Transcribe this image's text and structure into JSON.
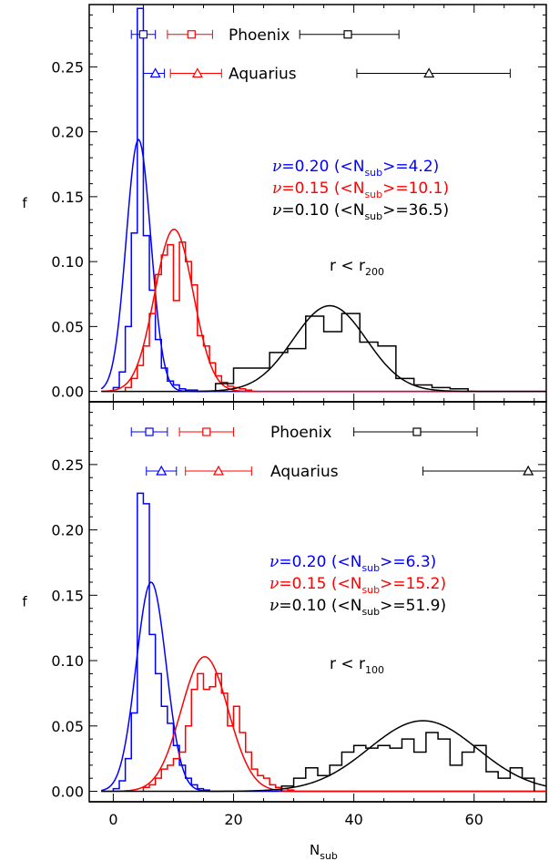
{
  "chart_data": [
    {
      "type": "line",
      "panel": "top",
      "xlim": [
        -4,
        72
      ],
      "ylim": [
        -0.008,
        0.298
      ],
      "yticks": [
        0.0,
        0.05,
        0.1,
        0.15,
        0.2,
        0.25
      ],
      "ytick_labels": [
        "0.00",
        "0.05",
        "0.10",
        "0.15",
        "0.20",
        "0.25"
      ],
      "ylabel": "f",
      "xlabel": "",
      "region_label": {
        "text": "r < r",
        "sub": "200"
      },
      "legend": [
        {
          "prefix": "=0.20 (<N",
          "sub": "sub",
          "suffix": ">=4.2)",
          "color": "#0000ff"
        },
        {
          "prefix": "=0.15 (<N",
          "sub": "sub",
          "suffix": ">=10.1)",
          "color": "#ff0000"
        },
        {
          "prefix": "=0.10 (<N",
          "sub": "sub",
          "suffix": ">=36.5)",
          "color": "#000000"
        }
      ],
      "nu_symbol": "ν",
      "references": [
        {
          "name": "Phoenix",
          "marker": "square",
          "y": 0.275,
          "points": [
            {
              "x": 5.0,
              "lo": 3.0,
              "hi": 7.0,
              "color": "#0000ff"
            },
            {
              "x": 13.0,
              "lo": 9.0,
              "hi": 16.5,
              "color": "#ff0000"
            },
            {
              "x": 39.0,
              "lo": 31.0,
              "hi": 47.5,
              "color": "#000000"
            }
          ]
        },
        {
          "name": "Aquarius",
          "marker": "triangle",
          "y": 0.245,
          "points": [
            {
              "x": 7.0,
              "lo": 5.0,
              "hi": 8.5,
              "color": "#0000ff"
            },
            {
              "x": 14.0,
              "lo": 9.5,
              "hi": 18.0,
              "color": "#ff0000"
            },
            {
              "x": 52.5,
              "lo": 40.5,
              "hi": 66.0,
              "color": "#000000"
            }
          ]
        }
      ],
      "series": [
        {
          "kind": "hist",
          "color": "#0000ff",
          "edges": [
            0,
            1,
            2,
            3,
            4,
            5,
            6,
            7,
            8,
            9,
            10,
            11,
            12,
            13,
            14,
            15,
            16
          ],
          "values": [
            0.003,
            0.015,
            0.05,
            0.122,
            0.295,
            0.12,
            0.078,
            0.04,
            0.018,
            0.008,
            0.005,
            0.002,
            0.001,
            0.001,
            0.0,
            0.0
          ]
        },
        {
          "kind": "curve",
          "color": "#0000ff",
          "mean": 4.2,
          "sigma": 2.05,
          "amp": 0.194
        },
        {
          "kind": "hist",
          "color": "#ff0000",
          "edges": [
            2,
            3,
            4,
            5,
            6,
            7,
            8,
            9,
            10,
            11,
            12,
            13,
            14,
            15,
            16,
            17,
            18,
            19,
            20,
            21,
            22,
            23,
            24
          ],
          "values": [
            0.003,
            0.01,
            0.02,
            0.035,
            0.06,
            0.09,
            0.105,
            0.113,
            0.07,
            0.115,
            0.1,
            0.082,
            0.043,
            0.035,
            0.022,
            0.012,
            0.007,
            0.004,
            0.003,
            0.002,
            0.001,
            0.0
          ]
        },
        {
          "kind": "curve",
          "color": "#ff0000",
          "mean": 10.1,
          "sigma": 3.2,
          "amp": 0.125
        },
        {
          "kind": "hist",
          "color": "#000000",
          "edges": [
            17,
            20,
            23,
            26,
            29,
            32,
            35,
            38,
            41,
            44,
            47,
            50,
            53,
            56,
            59
          ],
          "values": [
            0.006,
            0.018,
            0.018,
            0.03,
            0.033,
            0.058,
            0.046,
            0.06,
            0.038,
            0.035,
            0.01,
            0.005,
            0.003,
            0.002
          ]
        },
        {
          "kind": "curve",
          "color": "#000000",
          "mean": 36.0,
          "sigma": 6.1,
          "amp": 0.066
        }
      ]
    },
    {
      "type": "line",
      "panel": "bottom",
      "xlim": [
        -4,
        72
      ],
      "ylim": [
        -0.008,
        0.298
      ],
      "yticks": [
        0.0,
        0.05,
        0.1,
        0.15,
        0.2,
        0.25
      ],
      "ytick_labels": [
        "0.00",
        "0.05",
        "0.10",
        "0.15",
        "0.20",
        "0.25"
      ],
      "xticks": [
        0,
        20,
        40,
        60
      ],
      "xtick_labels": [
        "0",
        "20",
        "40",
        "60"
      ],
      "ylabel": "f",
      "xlabel": {
        "text": "N",
        "sub": "sub"
      },
      "region_label": {
        "text": "r < r",
        "sub": "100"
      },
      "legend": [
        {
          "prefix": "=0.20 (<N",
          "sub": "sub",
          "suffix": ">=6.3)",
          "color": "#0000ff"
        },
        {
          "prefix": "=0.15 (<N",
          "sub": "sub",
          "suffix": ">=15.2)",
          "color": "#ff0000"
        },
        {
          "prefix": "=0.10 (<N",
          "sub": "sub",
          "suffix": ">=51.9)",
          "color": "#000000"
        }
      ],
      "nu_symbol": "ν",
      "references": [
        {
          "name": "Phoenix",
          "marker": "square",
          "y": 0.275,
          "points": [
            {
              "x": 6.0,
              "lo": 3.0,
              "hi": 9.0,
              "color": "#0000ff"
            },
            {
              "x": 15.5,
              "lo": 11.0,
              "hi": 20.0,
              "color": "#ff0000"
            },
            {
              "x": 50.5,
              "lo": 40.0,
              "hi": 60.5,
              "color": "#000000"
            }
          ]
        },
        {
          "name": "Aquarius",
          "marker": "triangle",
          "y": 0.245,
          "points": [
            {
              "x": 8.0,
              "lo": 5.5,
              "hi": 10.5,
              "color": "#0000ff"
            },
            {
              "x": 17.5,
              "lo": 12.0,
              "hi": 23.0,
              "color": "#ff0000"
            },
            {
              "x": 69.0,
              "lo": 51.5,
              "hi": 72.0,
              "color": "#000000"
            }
          ]
        }
      ],
      "series": [
        {
          "kind": "hist",
          "color": "#0000ff",
          "edges": [
            0,
            1,
            2,
            3,
            4,
            5,
            6,
            7,
            8,
            9,
            10,
            11,
            12,
            13,
            14,
            15,
            16
          ],
          "values": [
            0.002,
            0.008,
            0.025,
            0.06,
            0.228,
            0.22,
            0.12,
            0.09,
            0.065,
            0.052,
            0.035,
            0.02,
            0.01,
            0.005,
            0.002,
            0.001
          ]
        },
        {
          "kind": "curve",
          "color": "#0000ff",
          "mean": 6.3,
          "sigma": 2.5,
          "amp": 0.16
        },
        {
          "kind": "hist",
          "color": "#ff0000",
          "edges": [
            5,
            6,
            7,
            8,
            9,
            10,
            11,
            12,
            13,
            14,
            15,
            16,
            17,
            18,
            19,
            20,
            21,
            22,
            23,
            24,
            25,
            26,
            27,
            28,
            29,
            30
          ],
          "values": [
            0.003,
            0.005,
            0.01,
            0.017,
            0.02,
            0.025,
            0.03,
            0.05,
            0.078,
            0.09,
            0.078,
            0.08,
            0.09,
            0.075,
            0.05,
            0.065,
            0.045,
            0.03,
            0.017,
            0.012,
            0.01,
            0.005,
            0.003,
            0.002,
            0.001
          ]
        },
        {
          "kind": "curve",
          "color": "#ff0000",
          "mean": 15.2,
          "sigma": 3.9,
          "amp": 0.103
        },
        {
          "kind": "hist",
          "color": "#000000",
          "edges": [
            28,
            30,
            32,
            34,
            36,
            38,
            40,
            42,
            44,
            46,
            48,
            50,
            52,
            54,
            56,
            58,
            60,
            62,
            64,
            66,
            68,
            70
          ],
          "values": [
            0.004,
            0.01,
            0.018,
            0.012,
            0.02,
            0.03,
            0.035,
            0.033,
            0.035,
            0.033,
            0.04,
            0.03,
            0.045,
            0.04,
            0.02,
            0.03,
            0.035,
            0.015,
            0.01,
            0.018,
            0.01
          ]
        },
        {
          "kind": "curve",
          "color": "#000000",
          "mean": 51.5,
          "sigma": 9.0,
          "amp": 0.054
        }
      ]
    }
  ]
}
